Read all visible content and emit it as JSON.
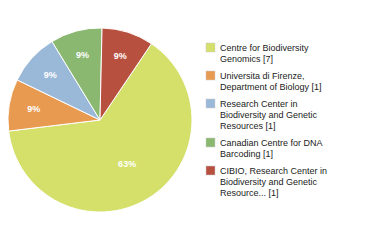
{
  "chart_data": {
    "type": "pie",
    "categories": [
      "Centre for Biodiversity\nGenomics [7]",
      "Universita di Firenze,\nDepartment of Biology [1]",
      "Research Center in\nBiodiversity and Genetic\nResources [1]",
      "Canadian Centre for DNA\nBarcoding [1]",
      "CIBIO, Research Center in\nBiodiversity and Genetic\nResource... [1]"
    ],
    "values": [
      63,
      9,
      9,
      9,
      9
    ],
    "value_labels": [
      "63%",
      "9%",
      "9%",
      "9%",
      "9%"
    ],
    "colors": [
      "#d4e06a",
      "#e89a50",
      "#9ab8d8",
      "#8ab870",
      "#b85040"
    ],
    "data_labels": true,
    "legend": "right"
  }
}
